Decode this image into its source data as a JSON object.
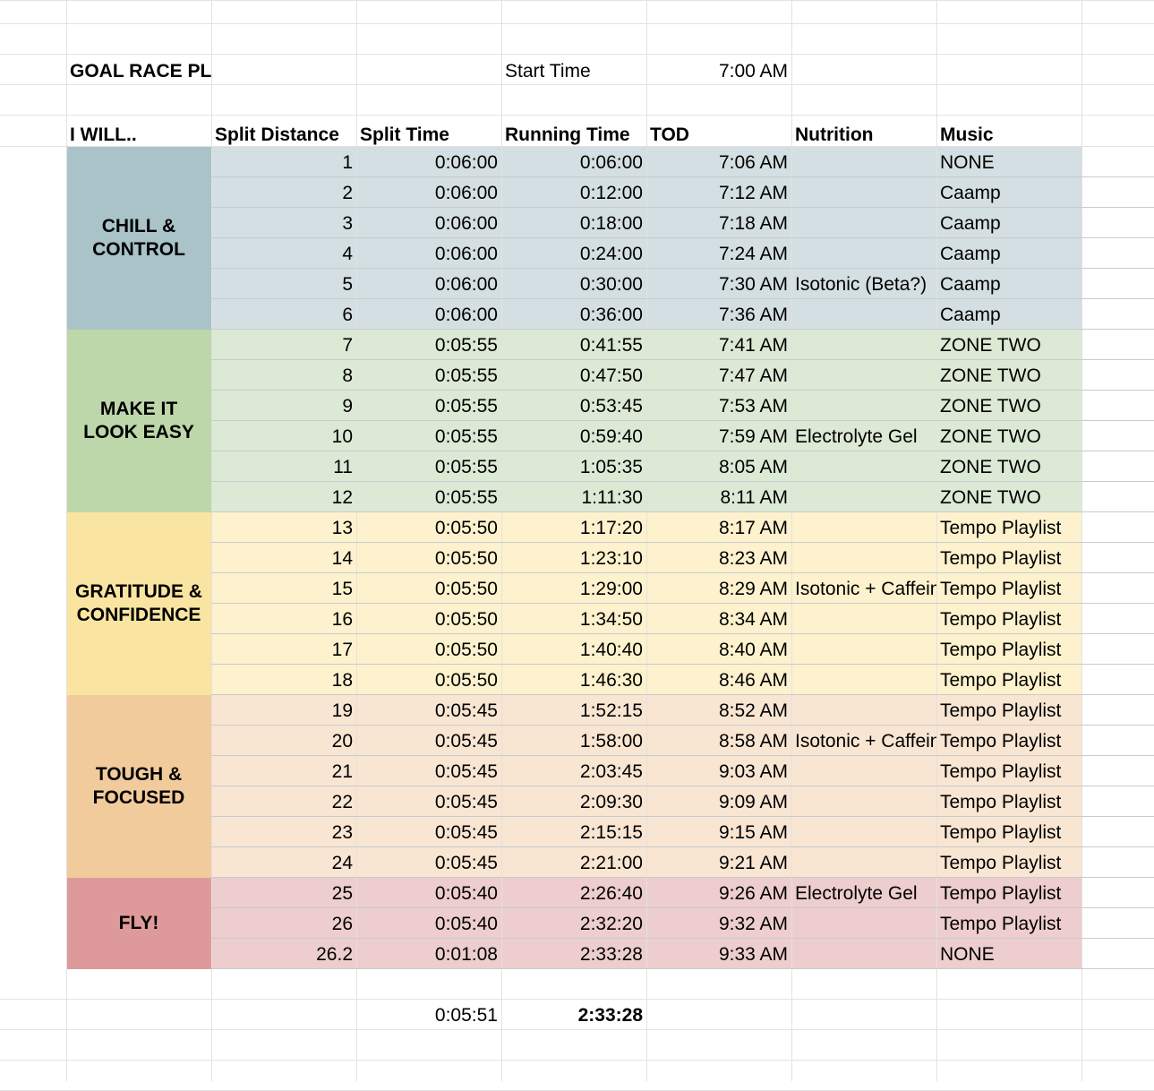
{
  "title": "GOAL RACE PLAN",
  "start_time": {
    "label": "Start Time",
    "value": "7:00 AM"
  },
  "headers": [
    "I WILL..",
    "Split Distance",
    "Split Time",
    "Running Time",
    "TOD",
    "Nutrition",
    "Music"
  ],
  "phases": [
    {
      "label": "CHILL &\nCONTROL",
      "color": "#a9c3c8",
      "row_color": "#d3dfe2"
    },
    {
      "label": "MAKE IT\nLOOK EASY",
      "color": "#bdd7ab",
      "row_color": "#dce9d5"
    },
    {
      "label": "GRATITUDE &\nCONFIDENCE",
      "color": "#f9e5a1",
      "row_color": "#fdf2cd"
    },
    {
      "label": "TOUGH &\nFOCUSED",
      "color": "#f2cb9d",
      "row_color": "#f8e5d2"
    },
    {
      "label": "FLY!",
      "color": "#de9a9a",
      "row_color": "#edcdcd"
    }
  ],
  "rows": [
    {
      "distance": "1",
      "split": "0:06:00",
      "running": "0:06:00",
      "tod": "7:06 AM",
      "nutrition": "",
      "music": "NONE"
    },
    {
      "distance": "2",
      "split": "0:06:00",
      "running": "0:12:00",
      "tod": "7:12 AM",
      "nutrition": "",
      "music": "Caamp"
    },
    {
      "distance": "3",
      "split": "0:06:00",
      "running": "0:18:00",
      "tod": "7:18 AM",
      "nutrition": "",
      "music": "Caamp"
    },
    {
      "distance": "4",
      "split": "0:06:00",
      "running": "0:24:00",
      "tod": "7:24 AM",
      "nutrition": "",
      "music": "Caamp"
    },
    {
      "distance": "5",
      "split": "0:06:00",
      "running": "0:30:00",
      "tod": "7:30 AM",
      "nutrition": "Isotonic (Beta?)",
      "music": "Caamp"
    },
    {
      "distance": "6",
      "split": "0:06:00",
      "running": "0:36:00",
      "tod": "7:36 AM",
      "nutrition": "",
      "music": "Caamp"
    },
    {
      "distance": "7",
      "split": "0:05:55",
      "running": "0:41:55",
      "tod": "7:41 AM",
      "nutrition": "",
      "music": "ZONE TWO"
    },
    {
      "distance": "8",
      "split": "0:05:55",
      "running": "0:47:50",
      "tod": "7:47 AM",
      "nutrition": "",
      "music": "ZONE TWO"
    },
    {
      "distance": "9",
      "split": "0:05:55",
      "running": "0:53:45",
      "tod": "7:53 AM",
      "nutrition": "",
      "music": "ZONE TWO"
    },
    {
      "distance": "10",
      "split": "0:05:55",
      "running": "0:59:40",
      "tod": "7:59 AM",
      "nutrition": "Electrolyte Gel",
      "music": "ZONE TWO"
    },
    {
      "distance": "11",
      "split": "0:05:55",
      "running": "1:05:35",
      "tod": "8:05 AM",
      "nutrition": "",
      "music": "ZONE TWO"
    },
    {
      "distance": "12",
      "split": "0:05:55",
      "running": "1:11:30",
      "tod": "8:11 AM",
      "nutrition": "",
      "music": "ZONE TWO"
    },
    {
      "distance": "13",
      "split": "0:05:50",
      "running": "1:17:20",
      "tod": "8:17 AM",
      "nutrition": "",
      "music": "Tempo Playlist"
    },
    {
      "distance": "14",
      "split": "0:05:50",
      "running": "1:23:10",
      "tod": "8:23 AM",
      "nutrition": "",
      "music": "Tempo Playlist"
    },
    {
      "distance": "15",
      "split": "0:05:50",
      "running": "1:29:00",
      "tod": "8:29 AM",
      "nutrition": "Isotonic + Caffeine",
      "music": "Tempo Playlist"
    },
    {
      "distance": "16",
      "split": "0:05:50",
      "running": "1:34:50",
      "tod": "8:34 AM",
      "nutrition": "",
      "music": "Tempo Playlist"
    },
    {
      "distance": "17",
      "split": "0:05:50",
      "running": "1:40:40",
      "tod": "8:40 AM",
      "nutrition": "",
      "music": "Tempo Playlist"
    },
    {
      "distance": "18",
      "split": "0:05:50",
      "running": "1:46:30",
      "tod": "8:46 AM",
      "nutrition": "",
      "music": "Tempo Playlist"
    },
    {
      "distance": "19",
      "split": "0:05:45",
      "running": "1:52:15",
      "tod": "8:52 AM",
      "nutrition": "",
      "music": "Tempo Playlist"
    },
    {
      "distance": "20",
      "split": "0:05:45",
      "running": "1:58:00",
      "tod": "8:58 AM",
      "nutrition": "Isotonic + Caffeine",
      "music": "Tempo Playlist"
    },
    {
      "distance": "21",
      "split": "0:05:45",
      "running": "2:03:45",
      "tod": "9:03 AM",
      "nutrition": "",
      "music": "Tempo Playlist"
    },
    {
      "distance": "22",
      "split": "0:05:45",
      "running": "2:09:30",
      "tod": "9:09 AM",
      "nutrition": "",
      "music": "Tempo Playlist"
    },
    {
      "distance": "23",
      "split": "0:05:45",
      "running": "2:15:15",
      "tod": "9:15 AM",
      "nutrition": "",
      "music": "Tempo Playlist"
    },
    {
      "distance": "24",
      "split": "0:05:45",
      "running": "2:21:00",
      "tod": "9:21 AM",
      "nutrition": "",
      "music": "Tempo Playlist"
    },
    {
      "distance": "25",
      "split": "0:05:40",
      "running": "2:26:40",
      "tod": "9:26 AM",
      "nutrition": "Electrolyte Gel",
      "music": "Tempo Playlist"
    },
    {
      "distance": "26",
      "split": "0:05:40",
      "running": "2:32:20",
      "tod": "9:32 AM",
      "nutrition": "",
      "music": "Tempo Playlist"
    },
    {
      "distance": "26.2",
      "split": "0:01:08",
      "running": "2:33:28",
      "tod": "9:33 AM",
      "nutrition": "",
      "music": "NONE"
    }
  ],
  "summary": {
    "avg_split": "0:05:51",
    "total_time": "2:33:28"
  }
}
